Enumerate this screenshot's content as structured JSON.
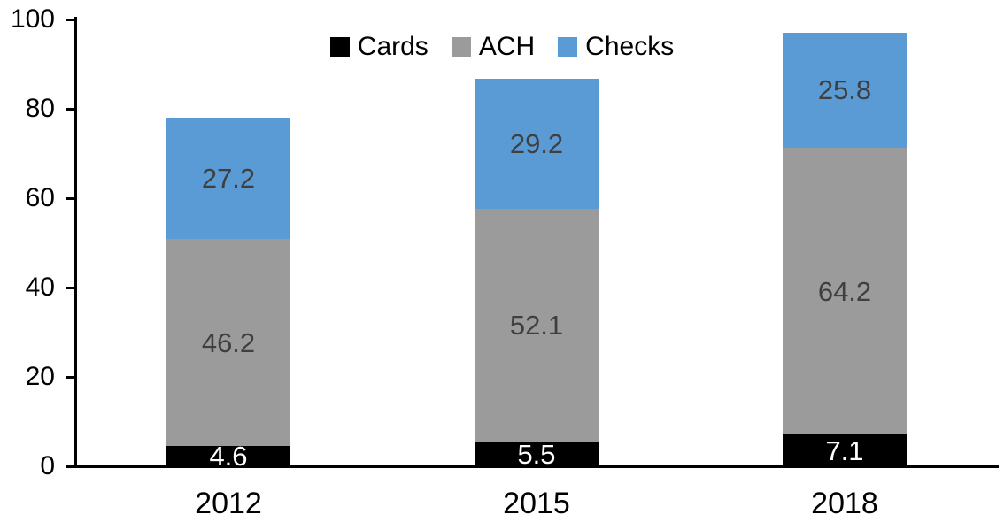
{
  "chart_data": {
    "type": "bar",
    "stacked": true,
    "title": "",
    "xlabel": "",
    "ylabel": "",
    "categories": [
      "2012",
      "2015",
      "2018"
    ],
    "series": [
      {
        "name": "Cards",
        "color": "#000000",
        "label_color": "#ffffff",
        "values": [
          4.6,
          5.5,
          7.1
        ]
      },
      {
        "name": "ACH",
        "color": "#9b9b9b",
        "label_color": "#3f3f3f",
        "values": [
          46.2,
          52.1,
          64.2
        ]
      },
      {
        "name": "Checks",
        "color": "#5b9bd5",
        "label_color": "#3f3f3f",
        "values": [
          27.2,
          29.2,
          25.8
        ]
      }
    ],
    "stack_totals": [
      78.0,
      86.8,
      97.1
    ],
    "ylim": [
      0,
      100
    ],
    "y_ticks": [
      0,
      20,
      40,
      60,
      80,
      100
    ],
    "grid": false,
    "legend_position": "top-center",
    "axis_color": "#000000",
    "background_color": "#ffffff",
    "data_labels_visible": true
  }
}
